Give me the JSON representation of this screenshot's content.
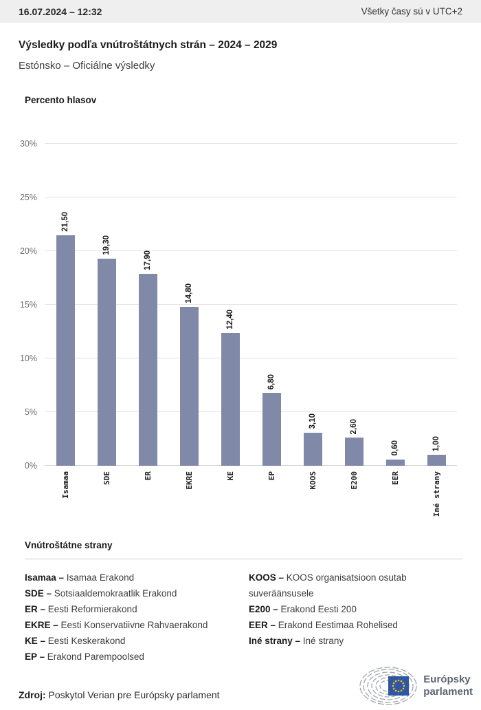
{
  "topbar": {
    "timestamp": "16.07.2024 – 12:32",
    "timezone_note": "Všetky časy sú v UTC+2"
  },
  "header": {
    "title": "Výsledky podľa vnútroštátnych strán – 2024 – 2029",
    "subtitle": "Estónsko – Oficiálne výsledky"
  },
  "chart_data": {
    "type": "bar",
    "title": "Percento hlasov",
    "categories": [
      "Isamaa",
      "SDE",
      "ER",
      "EKRE",
      "KE",
      "EP",
      "KOOS",
      "E200",
      "EER",
      "Iné strany"
    ],
    "values": [
      21.5,
      19.3,
      17.9,
      14.8,
      12.4,
      6.8,
      3.1,
      2.6,
      0.6,
      1.0
    ],
    "value_labels": [
      "21,50",
      "19,30",
      "17,90",
      "14,80",
      "12,40",
      "6,80",
      "3,10",
      "2,60",
      "0,60",
      "1,00"
    ],
    "ylim": [
      0,
      30
    ],
    "yticks": [
      0,
      5,
      10,
      15,
      20,
      25,
      30
    ],
    "ytick_labels": [
      "0%",
      "5%",
      "10%",
      "15%",
      "20%",
      "25%",
      "30%"
    ],
    "bar_color": "#8189A8",
    "grid": true,
    "legend_position": "below"
  },
  "legend": {
    "heading": "Vnútroštátne strany",
    "items": [
      {
        "abbr": "Isamaa",
        "name": "Isamaa Erakond"
      },
      {
        "abbr": "SDE",
        "name": "Sotsiaaldemokraatlik Erakond"
      },
      {
        "abbr": "ER",
        "name": "Eesti Reformierakond"
      },
      {
        "abbr": "EKRE",
        "name": "Eesti Konservatiivne Rahvaerakond"
      },
      {
        "abbr": "KE",
        "name": "Eesti Keskerakond"
      },
      {
        "abbr": "EP",
        "name": "Erakond Parempoolsed"
      },
      {
        "abbr": "KOOS",
        "name": "KOOS organisatsioon osutab suveräänsusele"
      },
      {
        "abbr": "E200",
        "name": "Erakond Eesti 200"
      },
      {
        "abbr": "EER",
        "name": "Erakond Eestimaa Rohelised"
      },
      {
        "abbr": "Iné strany",
        "name": "Iné strany"
      }
    ],
    "separator": "–",
    "left_column_count": 6
  },
  "footer": {
    "source_label": "Zdroj:",
    "source_text": "Poskytol Verian pre Európsky parlament",
    "logo_line1": "Európsky",
    "logo_line2": "parlament"
  },
  "colors": {
    "topbar_bg": "#efefef",
    "bar": "#8189A8",
    "gridline": "#e4e4e4",
    "eu_blue": "#2f56a5",
    "star_yellow": "#f7c600",
    "logo_arc_gray": "#a2a6ab",
    "logo_text": "#5d6570"
  }
}
